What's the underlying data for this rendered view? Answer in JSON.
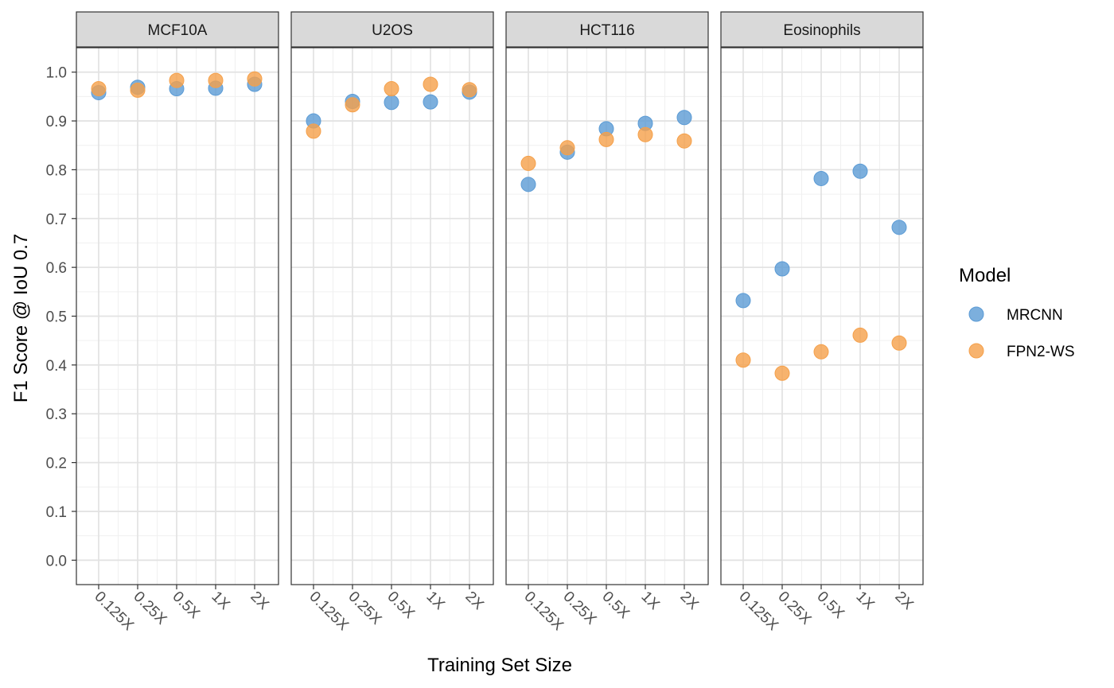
{
  "chart_data": {
    "type": "scatter",
    "facets": [
      "MCF10A",
      "U2OS",
      "HCT116",
      "Eosinophils"
    ],
    "categories": [
      "0.125X",
      "0.25X",
      "0.5X",
      "1X",
      "2X"
    ],
    "series": [
      {
        "name": "MRCNN",
        "color": "#5b9bd5",
        "values": {
          "MCF10A": [
            0.958,
            0.969,
            0.966,
            0.967,
            0.975
          ],
          "U2OS": [
            0.9,
            0.94,
            0.938,
            0.939,
            0.959
          ],
          "HCT116": [
            0.77,
            0.836,
            0.884,
            0.895,
            0.907
          ],
          "Eosinophils": [
            0.532,
            0.597,
            0.782,
            0.797,
            0.682
          ]
        }
      },
      {
        "name": "FPN2-WS",
        "color": "#f5a04a",
        "values": {
          "MCF10A": [
            0.966,
            0.963,
            0.983,
            0.983,
            0.986
          ],
          "U2OS": [
            0.879,
            0.933,
            0.966,
            0.975,
            0.964
          ],
          "HCT116": [
            0.813,
            0.845,
            0.862,
            0.872,
            0.859
          ],
          "Eosinophils": [
            0.41,
            0.383,
            0.427,
            0.461,
            0.445
          ]
        }
      }
    ],
    "ylim": [
      -0.05,
      1.05
    ],
    "yticks": [
      "0.0",
      "0.1",
      "0.2",
      "0.3",
      "0.4",
      "0.5",
      "0.6",
      "0.7",
      "0.8",
      "0.9",
      "1.0"
    ],
    "xlabel": "Training Set Size",
    "ylabel": "F1 Score @ IoU 0.7",
    "legend_title": "Model",
    "legend_position": "right",
    "grid": true
  }
}
